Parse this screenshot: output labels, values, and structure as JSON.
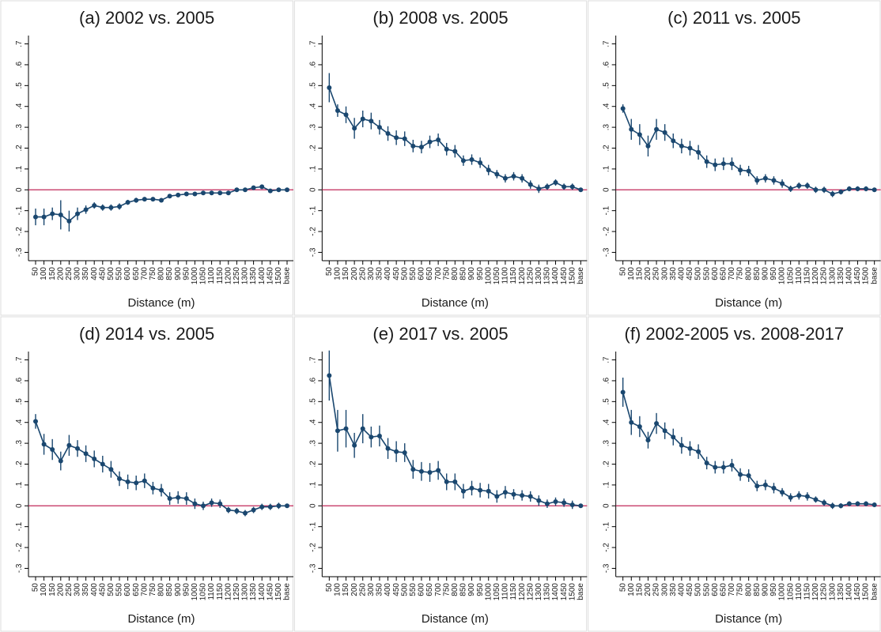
{
  "chart_data": [
    {
      "type": "line",
      "title": "(a) 2002 vs. 2005",
      "x_label": "Distance (m)",
      "categories": [
        "50",
        "100",
        "150",
        "200",
        "250",
        "300",
        "350",
        "400",
        "450",
        "500",
        "550",
        "600",
        "650",
        "700",
        "750",
        "800",
        "850",
        "900",
        "950",
        "1000",
        "1050",
        "1100",
        "1150",
        "1200",
        "1250",
        "1300",
        "1350",
        "1400",
        "1450",
        "1500",
        "base"
      ],
      "values": [
        -0.13,
        -0.13,
        -0.115,
        -0.12,
        -0.15,
        -0.115,
        -0.095,
        -0.075,
        -0.085,
        -0.085,
        -0.08,
        -0.06,
        -0.05,
        -0.045,
        -0.045,
        -0.05,
        -0.03,
        -0.025,
        -0.02,
        -0.02,
        -0.015,
        -0.015,
        -0.015,
        -0.015,
        0,
        0,
        0.01,
        0.015,
        -0.005,
        0,
        0
      ],
      "errors": [
        0.04,
        0.04,
        0.03,
        0.07,
        0.05,
        0.03,
        0.02,
        0.015,
        0.015,
        0.015,
        0.015,
        0.012,
        0.012,
        0.01,
        0.01,
        0.01,
        0.01,
        0.01,
        0.01,
        0.008,
        0.008,
        0.008,
        0.008,
        0.008,
        0.008,
        0.008,
        0.008,
        0.008,
        0.008,
        0.008,
        0
      ],
      "color": "#1a476f",
      "hline": 0,
      "hline_color": "#c0285a",
      "ylim": [
        -0.34,
        0.74
      ],
      "yticks": [
        {
          "value": -0.3,
          "label": "-.3"
        },
        {
          "value": -0.2,
          "label": "-.2"
        },
        {
          "value": -0.1,
          "label": "-.1"
        },
        0,
        {
          "value": 0.1,
          "label": ".1"
        },
        {
          "value": 0.2,
          "label": ".2"
        },
        {
          "value": 0.3,
          "label": ".3"
        },
        {
          "value": 0.4,
          "label": ".4"
        },
        {
          "value": 0.5,
          "label": ".5"
        },
        {
          "value": 0.6,
          "label": ".6"
        },
        {
          "value": 0.7,
          "label": ".7"
        }
      ]
    },
    {
      "type": "line",
      "title": "(b) 2008 vs. 2005",
      "x_label": "Distance (m)",
      "categories": [
        "50",
        "100",
        "150",
        "200",
        "250",
        "300",
        "350",
        "400",
        "450",
        "500",
        "550",
        "600",
        "650",
        "700",
        "750",
        "800",
        "850",
        "900",
        "950",
        "1000",
        "1050",
        "1100",
        "1150",
        "1200",
        "1250",
        "1300",
        "1350",
        "1400",
        "1450",
        "1500",
        "base"
      ],
      "values": [
        0.49,
        0.38,
        0.36,
        0.295,
        0.34,
        0.33,
        0.3,
        0.27,
        0.25,
        0.245,
        0.21,
        0.205,
        0.23,
        0.24,
        0.195,
        0.185,
        0.14,
        0.145,
        0.13,
        0.095,
        0.075,
        0.055,
        0.065,
        0.055,
        0.025,
        0.005,
        0.015,
        0.035,
        0.015,
        0.015,
        0
      ],
      "errors": [
        0.07,
        0.03,
        0.04,
        0.05,
        0.04,
        0.04,
        0.035,
        0.035,
        0.035,
        0.035,
        0.03,
        0.03,
        0.03,
        0.03,
        0.03,
        0.03,
        0.025,
        0.025,
        0.025,
        0.025,
        0.02,
        0.02,
        0.02,
        0.02,
        0.02,
        0.02,
        0.015,
        0.015,
        0.015,
        0.015,
        0
      ],
      "color": "#1a476f",
      "hline": 0,
      "hline_color": "#c0285a",
      "ylim": [
        -0.34,
        0.74
      ],
      "yticks": [
        {
          "value": -0.3,
          "label": "-.3"
        },
        {
          "value": -0.2,
          "label": "-.2"
        },
        {
          "value": -0.1,
          "label": "-.1"
        },
        0,
        {
          "value": 0.1,
          "label": ".1"
        },
        {
          "value": 0.2,
          "label": ".2"
        },
        {
          "value": 0.3,
          "label": ".3"
        },
        {
          "value": 0.4,
          "label": ".4"
        },
        {
          "value": 0.5,
          "label": ".5"
        },
        {
          "value": 0.6,
          "label": ".6"
        },
        {
          "value": 0.7,
          "label": ".7"
        }
      ]
    },
    {
      "type": "line",
      "title": "(c) 2011 vs. 2005",
      "x_label": "Distance (m)",
      "categories": [
        "50",
        "100",
        "150",
        "200",
        "250",
        "300",
        "350",
        "400",
        "450",
        "500",
        "550",
        "600",
        "650",
        "700",
        "750",
        "800",
        "850",
        "900",
        "950",
        "1000",
        "1050",
        "1100",
        "1150",
        "1200",
        "1250",
        "1300",
        "1350",
        "1400",
        "1450",
        "1500",
        "base"
      ],
      "values": [
        0.39,
        0.29,
        0.265,
        0.21,
        0.29,
        0.275,
        0.235,
        0.21,
        0.2,
        0.18,
        0.135,
        0.12,
        0.125,
        0.125,
        0.095,
        0.09,
        0.045,
        0.055,
        0.045,
        0.03,
        0.005,
        0.02,
        0.02,
        0,
        0,
        -0.02,
        -0.01,
        0.005,
        0.005,
        0.005,
        0
      ],
      "errors": [
        0.02,
        0.05,
        0.05,
        0.05,
        0.05,
        0.04,
        0.035,
        0.035,
        0.035,
        0.035,
        0.03,
        0.03,
        0.03,
        0.03,
        0.025,
        0.025,
        0.02,
        0.02,
        0.02,
        0.02,
        0.015,
        0.015,
        0.015,
        0.015,
        0.015,
        0.015,
        0.012,
        0.012,
        0.012,
        0.012,
        0
      ],
      "color": "#1a476f",
      "hline": 0,
      "hline_color": "#c0285a",
      "ylim": [
        -0.34,
        0.74
      ],
      "yticks": [
        {
          "value": -0.3,
          "label": "-.3"
        },
        {
          "value": -0.2,
          "label": "-.2"
        },
        {
          "value": -0.1,
          "label": "-.1"
        },
        0,
        {
          "value": 0.1,
          "label": ".1"
        },
        {
          "value": 0.2,
          "label": ".2"
        },
        {
          "value": 0.3,
          "label": ".3"
        },
        {
          "value": 0.4,
          "label": ".4"
        },
        {
          "value": 0.5,
          "label": ".5"
        },
        {
          "value": 0.6,
          "label": ".6"
        },
        {
          "value": 0.7,
          "label": ".7"
        }
      ]
    },
    {
      "type": "line",
      "title": "(d) 2014 vs. 2005",
      "x_label": "Distance (m)",
      "categories": [
        "50",
        "100",
        "150",
        "200",
        "250",
        "300",
        "350",
        "400",
        "450",
        "500",
        "550",
        "600",
        "650",
        "700",
        "750",
        "800",
        "850",
        "900",
        "950",
        "1000",
        "1050",
        "1100",
        "1150",
        "1200",
        "1250",
        "1300",
        "1350",
        "1400",
        "1450",
        "1500",
        "base"
      ],
      "values": [
        0.405,
        0.295,
        0.27,
        0.215,
        0.29,
        0.275,
        0.25,
        0.225,
        0.2,
        0.175,
        0.13,
        0.115,
        0.11,
        0.12,
        0.085,
        0.075,
        0.035,
        0.04,
        0.035,
        0.01,
        0,
        0.015,
        0.01,
        -0.02,
        -0.025,
        -0.035,
        -0.02,
        -0.005,
        -0.005,
        0,
        0
      ],
      "errors": [
        0.035,
        0.05,
        0.05,
        0.045,
        0.05,
        0.04,
        0.04,
        0.04,
        0.04,
        0.04,
        0.035,
        0.035,
        0.035,
        0.035,
        0.03,
        0.03,
        0.03,
        0.03,
        0.03,
        0.025,
        0.02,
        0.02,
        0.02,
        0.015,
        0.015,
        0.015,
        0.015,
        0.015,
        0.015,
        0.015,
        0
      ],
      "color": "#1a476f",
      "hline": 0,
      "hline_color": "#c0285a",
      "ylim": [
        -0.34,
        0.74
      ],
      "yticks": [
        {
          "value": -0.3,
          "label": "-.3"
        },
        {
          "value": -0.2,
          "label": "-.2"
        },
        {
          "value": -0.1,
          "label": "-.1"
        },
        0,
        {
          "value": 0.1,
          "label": ".1"
        },
        {
          "value": 0.2,
          "label": ".2"
        },
        {
          "value": 0.3,
          "label": ".3"
        },
        {
          "value": 0.4,
          "label": ".4"
        },
        {
          "value": 0.5,
          "label": ".5"
        },
        {
          "value": 0.6,
          "label": ".6"
        },
        {
          "value": 0.7,
          "label": ".7"
        }
      ]
    },
    {
      "type": "line",
      "title": "(e) 2017 vs. 2005",
      "x_label": "Distance (m)",
      "categories": [
        "50",
        "100",
        "150",
        "200",
        "250",
        "300",
        "350",
        "400",
        "450",
        "500",
        "550",
        "600",
        "650",
        "700",
        "750",
        "800",
        "850",
        "900",
        "950",
        "1000",
        "1050",
        "1100",
        "1150",
        "1200",
        "1250",
        "1300",
        "1350",
        "1400",
        "1450",
        "1500",
        "base"
      ],
      "values": [
        0.625,
        0.36,
        0.37,
        0.29,
        0.37,
        0.33,
        0.335,
        0.275,
        0.26,
        0.255,
        0.175,
        0.165,
        0.16,
        0.17,
        0.115,
        0.115,
        0.07,
        0.085,
        0.075,
        0.07,
        0.045,
        0.065,
        0.055,
        0.05,
        0.045,
        0.025,
        0.01,
        0.02,
        0.015,
        0.005,
        0
      ],
      "errors": [
        0.12,
        0.1,
        0.09,
        0.06,
        0.07,
        0.05,
        0.05,
        0.05,
        0.05,
        0.045,
        0.045,
        0.045,
        0.045,
        0.045,
        0.04,
        0.04,
        0.035,
        0.035,
        0.035,
        0.035,
        0.03,
        0.03,
        0.025,
        0.025,
        0.025,
        0.025,
        0.02,
        0.02,
        0.02,
        0.02,
        0
      ],
      "color": "#1a476f",
      "hline": 0,
      "hline_color": "#c0285a",
      "ylim": [
        -0.34,
        0.74
      ],
      "yticks": [
        {
          "value": -0.3,
          "label": "-.3"
        },
        {
          "value": -0.2,
          "label": "-.2"
        },
        {
          "value": -0.1,
          "label": "-.1"
        },
        0,
        {
          "value": 0.1,
          "label": ".1"
        },
        {
          "value": 0.2,
          "label": ".2"
        },
        {
          "value": 0.3,
          "label": ".3"
        },
        {
          "value": 0.4,
          "label": ".4"
        },
        {
          "value": 0.5,
          "label": ".5"
        },
        {
          "value": 0.6,
          "label": ".6"
        },
        {
          "value": 0.7,
          "label": ".7"
        }
      ]
    },
    {
      "type": "line",
      "title": "(f) 2002-2005 vs. 2008-2017",
      "x_label": "Distance (m)",
      "categories": [
        "50",
        "100",
        "150",
        "200",
        "250",
        "300",
        "350",
        "400",
        "450",
        "500",
        "550",
        "600",
        "650",
        "700",
        "750",
        "800",
        "850",
        "900",
        "950",
        "1000",
        "1050",
        "1100",
        "1150",
        "1200",
        "1250",
        "1300",
        "1350",
        "1400",
        "1450",
        "1500",
        "base"
      ],
      "values": [
        0.545,
        0.4,
        0.38,
        0.315,
        0.395,
        0.36,
        0.33,
        0.29,
        0.275,
        0.26,
        0.205,
        0.185,
        0.185,
        0.195,
        0.15,
        0.145,
        0.095,
        0.1,
        0.085,
        0.065,
        0.04,
        0.05,
        0.045,
        0.03,
        0.015,
        0,
        0,
        0.01,
        0.01,
        0.01,
        0.005
      ],
      "errors": [
        0.07,
        0.06,
        0.05,
        0.04,
        0.05,
        0.04,
        0.04,
        0.04,
        0.035,
        0.035,
        0.03,
        0.03,
        0.03,
        0.03,
        0.03,
        0.03,
        0.025,
        0.025,
        0.025,
        0.02,
        0.02,
        0.02,
        0.02,
        0.015,
        0.015,
        0.015,
        0.012,
        0.012,
        0.012,
        0.012,
        0
      ],
      "color": "#1a476f",
      "hline": 0,
      "hline_color": "#c0285a",
      "ylim": [
        -0.34,
        0.74
      ],
      "yticks": [
        {
          "value": -0.3,
          "label": "-.3"
        },
        {
          "value": -0.2,
          "label": "-.2"
        },
        {
          "value": -0.1,
          "label": "-.1"
        },
        0,
        {
          "value": 0.1,
          "label": ".1"
        },
        {
          "value": 0.2,
          "label": ".2"
        },
        {
          "value": 0.3,
          "label": ".3"
        },
        {
          "value": 0.4,
          "label": ".4"
        },
        {
          "value": 0.5,
          "label": ".5"
        },
        {
          "value": 0.6,
          "label": ".6"
        },
        {
          "value": 0.7,
          "label": ".7"
        }
      ]
    }
  ]
}
